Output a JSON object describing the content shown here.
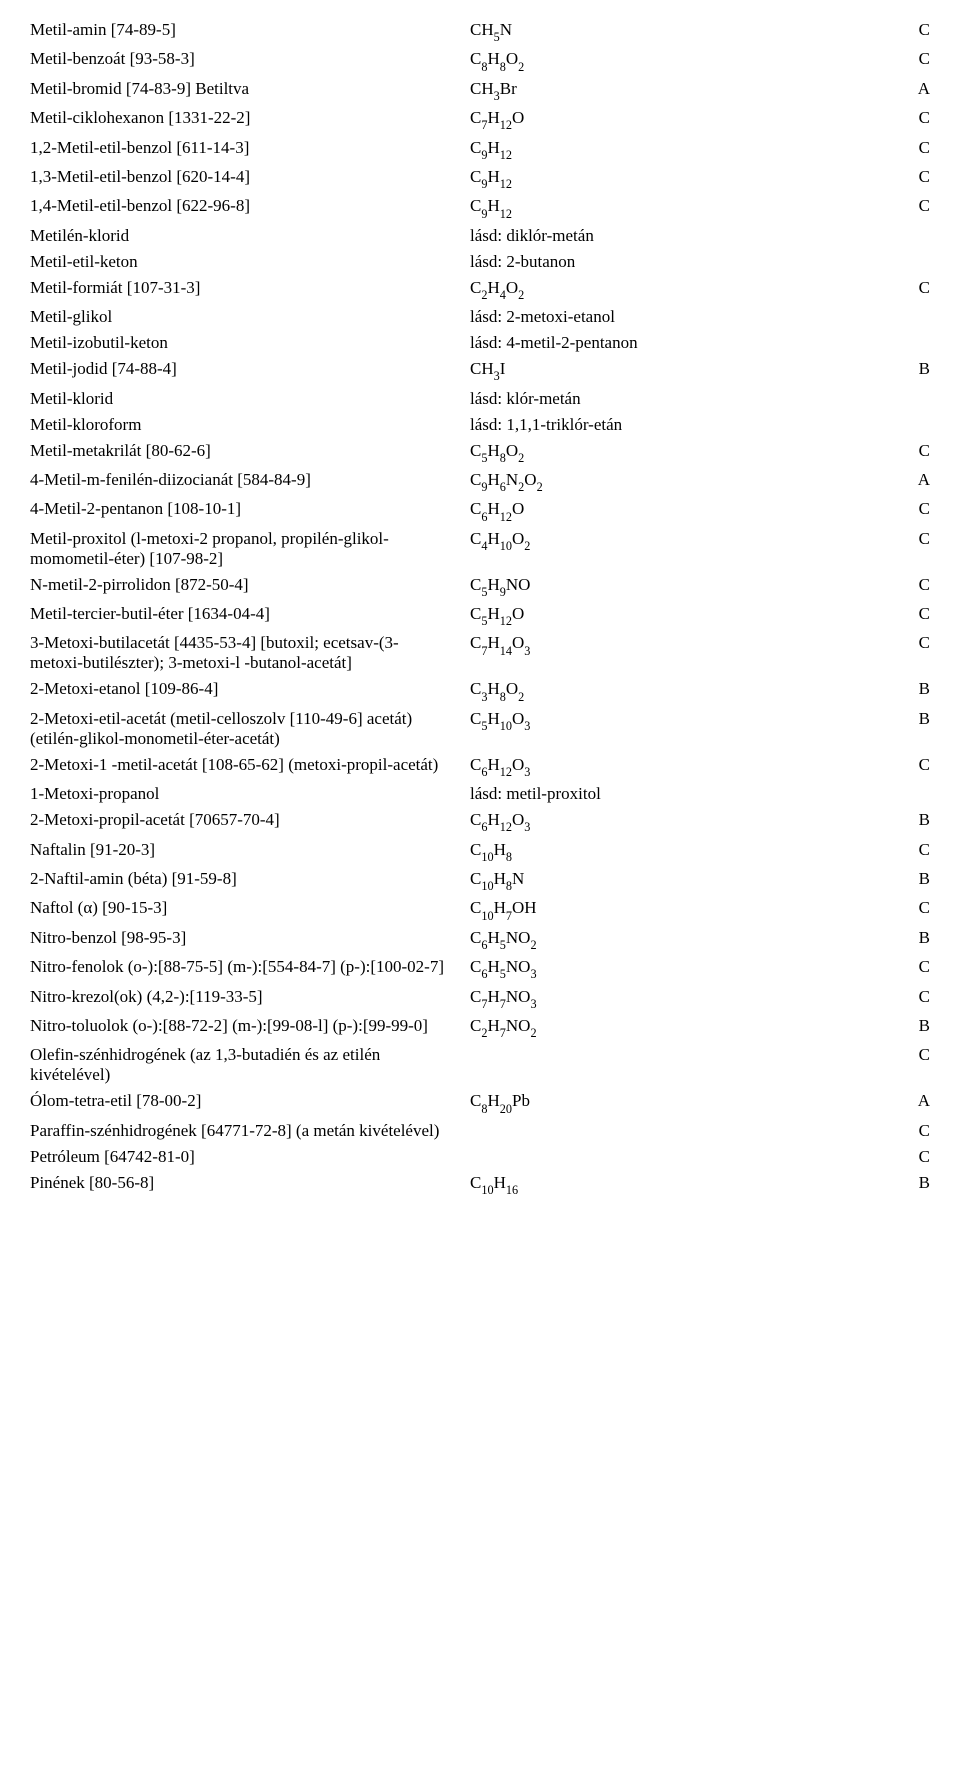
{
  "rows": [
    {
      "name": "Metil-amin [74-89-5]",
      "formula": "CH|5|N",
      "cls": "C"
    },
    {
      "name": "Metil-benzoát [93-58-3]",
      "formula": "C|8|H|8|O|2",
      "cls": "C"
    },
    {
      "name": "Metil-bromid [74-83-9] Betiltva",
      "formula": "CH|3|Br",
      "cls": "A"
    },
    {
      "name": "Metil-ciklohexanon [1331-22-2]",
      "formula": "C|7|H|12|O",
      "cls": "C"
    },
    {
      "name": "1,2-Metil-etil-benzol [611-14-3]",
      "formula": "C|9|H|12",
      "cls": "C"
    },
    {
      "name": "1,3-Metil-etil-benzol [620-14-4]",
      "formula": "C|9|H|12",
      "cls": "C"
    },
    {
      "name": "1,4-Metil-etil-benzol [622-96-8]",
      "formula": "C|9|H|12",
      "cls": "C"
    },
    {
      "name": "Metilén-klorid",
      "formula_text": "lásd: diklór-metán",
      "cls": ""
    },
    {
      "name": "Metil-etil-keton",
      "formula_text": "lásd: 2-butanon",
      "cls": ""
    },
    {
      "name": "Metil-formiát [107-31-3]",
      "formula": "C|2|H|4|O|2",
      "cls": "C"
    },
    {
      "name": "Metil-glikol",
      "formula_text": "lásd: 2-metoxi-etanol",
      "cls": ""
    },
    {
      "name": "Metil-izobutil-keton",
      "formula_text": "lásd: 4-metil-2-pentanon",
      "cls": ""
    },
    {
      "name": "Metil-jodid [74-88-4]",
      "formula": "CH|3|I",
      "cls": "B"
    },
    {
      "name": "Metil-klorid",
      "formula_text": "lásd: klór-metán",
      "cls": ""
    },
    {
      "name": "Metil-kloroform",
      "formula_text": "lásd: 1,1,1-triklór-etán",
      "cls": ""
    },
    {
      "name": "Metil-metakrilát [80-62-6]",
      "formula": "C|5|H|8|O|2",
      "cls": "C"
    },
    {
      "name": "4-Metil-m-fenilén-diizocianát [584-84-9]",
      "formula": "C|9|H|6|N|2|O|2",
      "cls": "A"
    },
    {
      "name": "4-Metil-2-pentanon [108-10-1]",
      "formula": "C|6|H|12|O",
      "cls": "C"
    },
    {
      "name": "Metil-proxitol (l-metoxi-2 propanol, propilén-glikol-momometil-éter) [107-98-2]",
      "formula": "C|4|H|10|O|2",
      "cls": "C"
    },
    {
      "name": "N-metil-2-pirrolidon [872-50-4]",
      "formula": "C|5|H|9|NO",
      "cls": "C"
    },
    {
      "name": "Metil-tercier-butil-éter [1634-04-4]",
      "formula": "C|5|H|12|O",
      "cls": "C"
    },
    {
      "name": "3-Metoxi-butilacetát [4435-53-4] [butoxil; ecetsav-(3-metoxi-butilészter); 3-metoxi-l -butanol-acetát]",
      "formula": "C|7|H|14|O|3",
      "cls": "C"
    },
    {
      "name": "2-Metoxi-etanol [109-86-4]",
      "formula": "C|3|H|8|O|2",
      "cls": "B"
    },
    {
      "name": "2-Metoxi-etil-acetát (metil-celloszolv [110-49-6] acetát) (etilén-glikol-monometil-éter-acetát)",
      "formula": "C|5|H|10|O|3",
      "cls": "B"
    },
    {
      "name": "2-Metoxi-1 -metil-acetát [108-65-62] (metoxi-propil-acetát)",
      "formula": "C|6|H|12|O|3",
      "cls": "C"
    },
    {
      "name": "1-Metoxi-propanol",
      "formula_text": "lásd: metil-proxitol",
      "cls": ""
    },
    {
      "name": "2-Metoxi-propil-acetát [70657-70-4]",
      "formula": "C|6|H|12|O|3",
      "cls": "B"
    },
    {
      "name": "Naftalin [91-20-3]",
      "formula": "C|10|H|8",
      "cls": "C"
    },
    {
      "name": "2-Naftil-amin (béta) [91-59-8]",
      "formula": "C|10|H|8|N",
      "cls": "B"
    },
    {
      "name": "Naftol (α) [90-15-3]",
      "formula": "C|10|H|7|OH",
      "cls": "C"
    },
    {
      "name": "Nitro-benzol [98-95-3]",
      "formula": "C|6|H|5|NO|2",
      "cls": "B"
    },
    {
      "name": "Nitro-fenolok (o-):[88-75-5] (m-):[554-84-7] (p-):[100-02-7]",
      "formula": "C|6|H|5|NO|3",
      "cls": "C"
    },
    {
      "name": "Nitro-krezol(ok) (4,2-):[119-33-5]",
      "formula": "C|7|H|7|NO|3",
      "cls": "C"
    },
    {
      "name": "Nitro-toluolok (o-):[88-72-2] (m-):[99-08-l] (p-):[99-99-0]",
      "formula": "C|2|H|7|NO|2",
      "cls": "B"
    },
    {
      "name": "Olefin-szénhidrogének (az 1,3-butadién és az etilén kivételével)",
      "formula_text": "",
      "cls": "C"
    },
    {
      "name": "Ólom-tetra-etil [78-00-2]",
      "formula": "C|8|H|20|Pb",
      "cls": "A"
    },
    {
      "name": "Paraffin-szénhidrogének [64771-72-8] (a metán kivételével)",
      "formula_text": "",
      "cls": "C"
    },
    {
      "name": "Petróleum [64742-81-0]",
      "formula_text": "",
      "cls": "C"
    },
    {
      "name": "Pinének [80-56-8]",
      "formula": "C|10|H|16",
      "cls": "B"
    }
  ]
}
